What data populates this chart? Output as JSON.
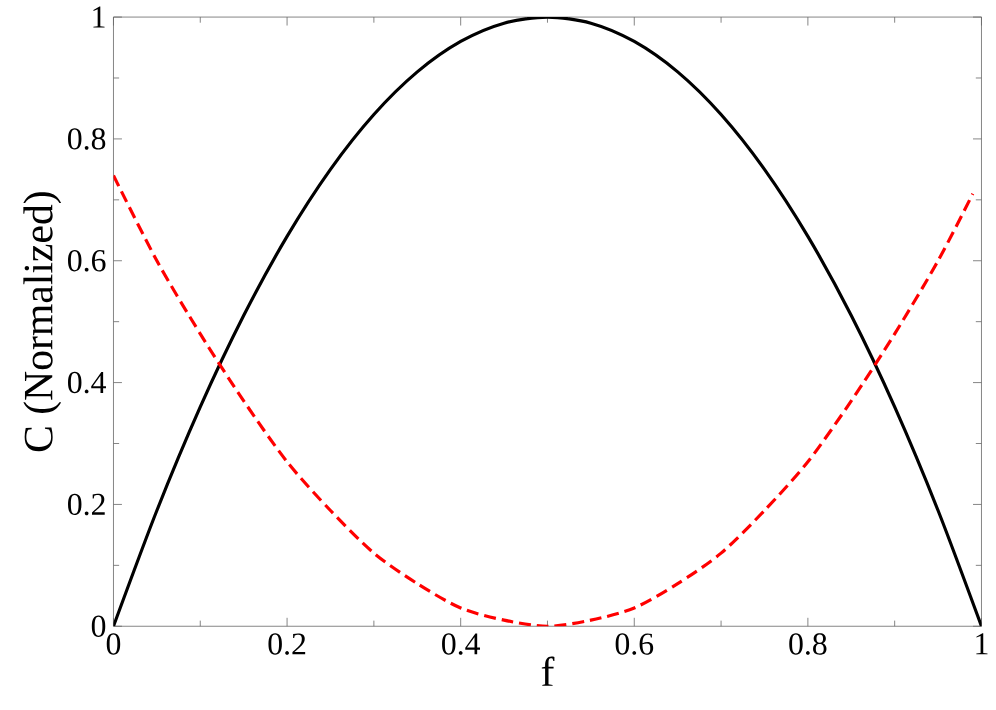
{
  "chart_data": {
    "type": "line",
    "xlabel": "f",
    "ylabel": "C (Normalized)",
    "xlim": [
      0,
      1
    ],
    "ylim": [
      0,
      1
    ],
    "xticks": [
      0,
      0.2,
      0.4,
      0.6,
      0.8,
      1
    ],
    "yticks": [
      0,
      0.2,
      0.4,
      0.6,
      0.8,
      1
    ],
    "grid": false,
    "marker": "none",
    "series": [
      {
        "color": "#000000",
        "line_style": "solid",
        "x": [
          0,
          0.05,
          0.1,
          0.15,
          0.2,
          0.25,
          0.3,
          0.35,
          0.4,
          0.45,
          0.5,
          0.55,
          0.6,
          0.65,
          0.7,
          0.75,
          0.8,
          0.85,
          0.9,
          0.95,
          1
        ],
        "values": [
          0,
          0.19,
          0.36,
          0.51,
          0.64,
          0.75,
          0.84,
          0.91,
          0.96,
          0.99,
          1,
          0.99,
          0.96,
          0.91,
          0.84,
          0.75,
          0.64,
          0.51,
          0.36,
          0.19,
          0
        ]
      },
      {
        "color": "#ff0000",
        "line_style": "dashed",
        "x": [
          0,
          0.05,
          0.1,
          0.15,
          0.2,
          0.25,
          0.3,
          0.35,
          0.4,
          0.45,
          0.5,
          0.55,
          0.6,
          0.65,
          0.7,
          0.75,
          0.8,
          0.85,
          0.9,
          0.95,
          0.99
        ],
        "values": [
          0.74,
          0.6,
          0.48,
          0.37,
          0.27,
          0.19,
          0.12,
          0.07,
          0.03,
          0.01,
          0,
          0.01,
          0.03,
          0.07,
          0.12,
          0.19,
          0.27,
          0.37,
          0.48,
          0.6,
          0.71
        ]
      }
    ]
  }
}
